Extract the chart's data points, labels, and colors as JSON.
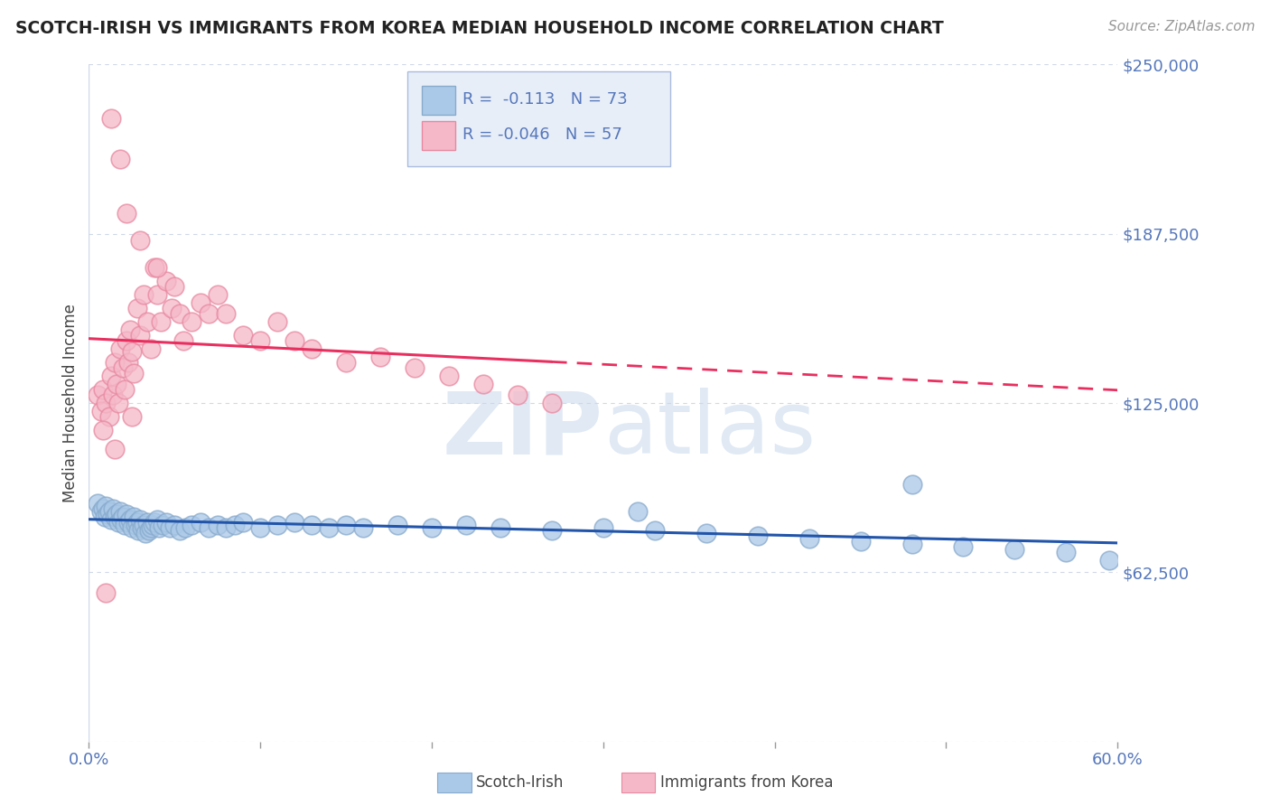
{
  "title": "SCOTCH-IRISH VS IMMIGRANTS FROM KOREA MEDIAN HOUSEHOLD INCOME CORRELATION CHART",
  "source": "Source: ZipAtlas.com",
  "ylabel": "Median Household Income",
  "xlim": [
    0.0,
    0.6
  ],
  "ylim": [
    0,
    250000
  ],
  "yticks": [
    0,
    62500,
    125000,
    187500,
    250000
  ],
  "ytick_labels": [
    "",
    "$62,500",
    "$125,000",
    "$187,500",
    "$250,000"
  ],
  "xtick_positions": [
    0.0,
    0.1,
    0.2,
    0.3,
    0.4,
    0.5,
    0.6
  ],
  "series1_name": "Scotch-Irish",
  "series1_dot_color": "#aac8e8",
  "series1_edge_color": "#88aacc",
  "series1_line_color": "#2255aa",
  "series1_R": -0.113,
  "series1_N": 73,
  "series2_name": "Immigrants from Korea",
  "series2_dot_color": "#f5b8c8",
  "series2_edge_color": "#e888a0",
  "series2_line_color": "#e83060",
  "series2_R": -0.046,
  "series2_N": 57,
  "watermark_zip_color": "#c8d8ec",
  "watermark_atlas_color": "#c8d8ec",
  "background_color": "#ffffff",
  "grid_color": "#d0d8e8",
  "title_color": "#222222",
  "tick_color": "#5577bb",
  "legend_box_color": "#e8eef8",
  "legend_border_color": "#aabbdd",
  "series1_x": [
    0.005,
    0.007,
    0.008,
    0.009,
    0.01,
    0.011,
    0.012,
    0.013,
    0.014,
    0.015,
    0.016,
    0.017,
    0.018,
    0.019,
    0.02,
    0.021,
    0.022,
    0.023,
    0.024,
    0.025,
    0.026,
    0.027,
    0.028,
    0.029,
    0.03,
    0.031,
    0.032,
    0.033,
    0.034,
    0.035,
    0.036,
    0.037,
    0.038,
    0.04,
    0.041,
    0.043,
    0.045,
    0.047,
    0.05,
    0.053,
    0.056,
    0.06,
    0.065,
    0.07,
    0.075,
    0.08,
    0.085,
    0.09,
    0.1,
    0.11,
    0.12,
    0.13,
    0.14,
    0.15,
    0.16,
    0.18,
    0.2,
    0.22,
    0.24,
    0.27,
    0.3,
    0.33,
    0.36,
    0.39,
    0.42,
    0.45,
    0.48,
    0.51,
    0.54,
    0.57,
    0.595,
    0.48,
    0.32
  ],
  "series1_y": [
    88000,
    85000,
    86000,
    83000,
    87000,
    84000,
    85000,
    82000,
    86000,
    83000,
    84000,
    81000,
    85000,
    82000,
    83000,
    80000,
    84000,
    81000,
    82000,
    79000,
    83000,
    80000,
    81000,
    78000,
    82000,
    79000,
    80000,
    77000,
    81000,
    78000,
    79000,
    80000,
    81000,
    82000,
    79000,
    80000,
    81000,
    79000,
    80000,
    78000,
    79000,
    80000,
    81000,
    79000,
    80000,
    79000,
    80000,
    81000,
    79000,
    80000,
    81000,
    80000,
    79000,
    80000,
    79000,
    80000,
    79000,
    80000,
    79000,
    78000,
    79000,
    78000,
    77000,
    76000,
    75000,
    74000,
    73000,
    72000,
    71000,
    70000,
    67000,
    95000,
    85000
  ],
  "series2_x": [
    0.005,
    0.007,
    0.008,
    0.01,
    0.012,
    0.013,
    0.014,
    0.015,
    0.016,
    0.017,
    0.018,
    0.02,
    0.021,
    0.022,
    0.023,
    0.024,
    0.025,
    0.026,
    0.028,
    0.03,
    0.032,
    0.034,
    0.036,
    0.038,
    0.04,
    0.042,
    0.045,
    0.048,
    0.05,
    0.053,
    0.055,
    0.06,
    0.065,
    0.07,
    0.075,
    0.08,
    0.09,
    0.1,
    0.11,
    0.12,
    0.13,
    0.15,
    0.17,
    0.19,
    0.21,
    0.23,
    0.25,
    0.27,
    0.013,
    0.018,
    0.022,
    0.03,
    0.04,
    0.025,
    0.015,
    0.01,
    0.008
  ],
  "series2_y": [
    128000,
    122000,
    130000,
    125000,
    120000,
    135000,
    128000,
    140000,
    132000,
    125000,
    145000,
    138000,
    130000,
    148000,
    140000,
    152000,
    144000,
    136000,
    160000,
    150000,
    165000,
    155000,
    145000,
    175000,
    165000,
    155000,
    170000,
    160000,
    168000,
    158000,
    148000,
    155000,
    162000,
    158000,
    165000,
    158000,
    150000,
    148000,
    155000,
    148000,
    145000,
    140000,
    142000,
    138000,
    135000,
    132000,
    128000,
    125000,
    230000,
    215000,
    195000,
    185000,
    175000,
    120000,
    108000,
    55000,
    115000
  ]
}
